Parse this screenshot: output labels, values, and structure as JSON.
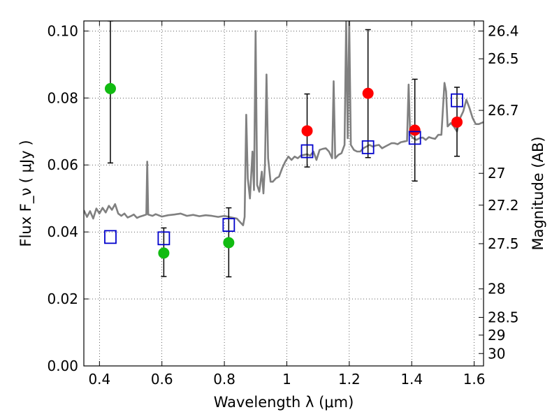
{
  "chart_data": {
    "type": "scatter",
    "xlabel": "Wavelength  λ (μm)",
    "ylabel": "Flux  F_ν  ( μJy )",
    "ylabel_right": "Magnitude (AB)",
    "xlim": [
      0.35,
      1.63
    ],
    "ylim": [
      0.0,
      0.103
    ],
    "grid": true,
    "x_ticks": [
      0.4,
      0.6,
      0.8,
      1.0,
      1.2,
      1.4,
      1.6
    ],
    "x_tick_labels": [
      "0.4",
      "0.6",
      "0.8",
      "1",
      "1.2",
      "1.4",
      "1.6"
    ],
    "y_ticks": [
      0.0,
      0.02,
      0.04,
      0.06,
      0.08,
      0.1
    ],
    "y_tick_labels": [
      "0.00",
      "0.02",
      "0.04",
      "0.06",
      "0.08",
      "0.10"
    ],
    "mag_ticks": [
      {
        "flux": 0.1,
        "label": "26.4"
      },
      {
        "flux": 0.0917,
        "label": "26.5"
      },
      {
        "flux": 0.0763,
        "label": "26.7"
      },
      {
        "flux": 0.0575,
        "label": "27"
      },
      {
        "flux": 0.048,
        "label": "27.2"
      },
      {
        "flux": 0.0365,
        "label": "27.5"
      },
      {
        "flux": 0.023,
        "label": "28"
      },
      {
        "flux": 0.0145,
        "label": "28.5"
      },
      {
        "flux": 0.0092,
        "label": "29"
      },
      {
        "flux": 0.0037,
        "label": "30"
      }
    ],
    "colors": {
      "green": "#11bb11",
      "red": "#ff0000",
      "model_squares": "#0000cc",
      "spectrum": "#808080",
      "error_bars": "#000000"
    },
    "series": [
      {
        "marker": "circle",
        "color": "green",
        "points": [
          {
            "x": 0.435,
            "y": 0.0828,
            "yerr_low": 0.0606,
            "yerr_high": 0.103
          },
          {
            "x": 0.606,
            "y": 0.0337,
            "yerr_low": 0.0267,
            "yerr_high": 0.0412
          },
          {
            "x": 0.814,
            "y": 0.0368,
            "yerr_low": 0.0266,
            "yerr_high": 0.0472
          }
        ]
      },
      {
        "marker": "circle",
        "color": "red",
        "points": [
          {
            "x": 1.065,
            "y": 0.0702,
            "yerr_low": 0.0594,
            "yerr_high": 0.0812
          },
          {
            "x": 1.26,
            "y": 0.0814,
            "yerr_low": 0.0622,
            "yerr_high": 0.1004
          },
          {
            "x": 1.41,
            "y": 0.0704,
            "yerr_low": 0.0552,
            "yerr_high": 0.0856
          },
          {
            "x": 1.545,
            "y": 0.0728,
            "yerr_low": 0.0626,
            "yerr_high": 0.0832
          }
        ]
      },
      {
        "marker": "square",
        "color": "model_squares",
        "points": [
          {
            "x": 0.435,
            "y": 0.0385
          },
          {
            "x": 0.606,
            "y": 0.0381
          },
          {
            "x": 0.814,
            "y": 0.0421
          },
          {
            "x": 1.065,
            "y": 0.0641
          },
          {
            "x": 1.26,
            "y": 0.0653
          },
          {
            "x": 1.41,
            "y": 0.0681
          },
          {
            "x": 1.545,
            "y": 0.0793
          }
        ]
      }
    ],
    "spectrum": [
      [
        0.35,
        0.0465
      ],
      [
        0.36,
        0.0445
      ],
      [
        0.37,
        0.0462
      ],
      [
        0.38,
        0.044
      ],
      [
        0.39,
        0.047
      ],
      [
        0.4,
        0.0455
      ],
      [
        0.41,
        0.0472
      ],
      [
        0.42,
        0.0458
      ],
      [
        0.43,
        0.0478
      ],
      [
        0.44,
        0.0466
      ],
      [
        0.45,
        0.0483
      ],
      [
        0.46,
        0.0455
      ],
      [
        0.47,
        0.0448
      ],
      [
        0.48,
        0.0455
      ],
      [
        0.49,
        0.0443
      ],
      [
        0.5,
        0.0447
      ],
      [
        0.51,
        0.0452
      ],
      [
        0.52,
        0.0442
      ],
      [
        0.53,
        0.0446
      ],
      [
        0.54,
        0.0449
      ],
      [
        0.55,
        0.0452
      ],
      [
        0.553,
        0.061
      ],
      [
        0.556,
        0.0452
      ],
      [
        0.57,
        0.0448
      ],
      [
        0.58,
        0.0453
      ],
      [
        0.6,
        0.0446
      ],
      [
        0.62,
        0.045
      ],
      [
        0.64,
        0.0452
      ],
      [
        0.66,
        0.0455
      ],
      [
        0.68,
        0.0448
      ],
      [
        0.7,
        0.0451
      ],
      [
        0.72,
        0.0447
      ],
      [
        0.74,
        0.045
      ],
      [
        0.76,
        0.0448
      ],
      [
        0.78,
        0.0445
      ],
      [
        0.8,
        0.0448
      ],
      [
        0.82,
        0.0444
      ],
      [
        0.84,
        0.044
      ],
      [
        0.86,
        0.042
      ],
      [
        0.865,
        0.0445
      ],
      [
        0.87,
        0.075
      ],
      [
        0.875,
        0.056
      ],
      [
        0.882,
        0.05
      ],
      [
        0.89,
        0.064
      ],
      [
        0.895,
        0.0525
      ],
      [
        0.9,
        0.1
      ],
      [
        0.905,
        0.054
      ],
      [
        0.912,
        0.052
      ],
      [
        0.92,
        0.058
      ],
      [
        0.925,
        0.0515
      ],
      [
        0.93,
        0.06
      ],
      [
        0.935,
        0.087
      ],
      [
        0.94,
        0.062
      ],
      [
        0.948,
        0.055
      ],
      [
        0.955,
        0.055
      ],
      [
        0.965,
        0.056
      ],
      [
        0.975,
        0.0565
      ],
      [
        0.985,
        0.059
      ],
      [
        0.995,
        0.061
      ],
      [
        1.005,
        0.0625
      ],
      [
        1.015,
        0.0615
      ],
      [
        1.025,
        0.0625
      ],
      [
        1.035,
        0.062
      ],
      [
        1.045,
        0.0628
      ],
      [
        1.055,
        0.063
      ],
      [
        1.065,
        0.0632
      ],
      [
        1.075,
        0.0628
      ],
      [
        1.085,
        0.064
      ],
      [
        1.095,
        0.0615
      ],
      [
        1.105,
        0.0645
      ],
      [
        1.115,
        0.0648
      ],
      [
        1.125,
        0.065
      ],
      [
        1.135,
        0.064
      ],
      [
        1.145,
        0.062
      ],
      [
        1.15,
        0.085
      ],
      [
        1.155,
        0.062
      ],
      [
        1.165,
        0.063
      ],
      [
        1.175,
        0.0635
      ],
      [
        1.185,
        0.066
      ],
      [
        1.19,
        0.103
      ],
      [
        1.195,
        0.068
      ],
      [
        1.2,
        0.103
      ],
      [
        1.205,
        0.066
      ],
      [
        1.215,
        0.0645
      ],
      [
        1.225,
        0.064
      ],
      [
        1.235,
        0.064
      ],
      [
        1.245,
        0.065
      ],
      [
        1.255,
        0.0655
      ],
      [
        1.265,
        0.066
      ],
      [
        1.275,
        0.0655
      ],
      [
        1.285,
        0.0658
      ],
      [
        1.295,
        0.066
      ],
      [
        1.305,
        0.065
      ],
      [
        1.315,
        0.0655
      ],
      [
        1.325,
        0.066
      ],
      [
        1.335,
        0.0665
      ],
      [
        1.345,
        0.0665
      ],
      [
        1.355,
        0.0662
      ],
      [
        1.365,
        0.0668
      ],
      [
        1.375,
        0.067
      ],
      [
        1.385,
        0.0672
      ],
      [
        1.39,
        0.084
      ],
      [
        1.395,
        0.069
      ],
      [
        1.405,
        0.068
      ],
      [
        1.415,
        0.0675
      ],
      [
        1.425,
        0.068
      ],
      [
        1.435,
        0.0682
      ],
      [
        1.445,
        0.0675
      ],
      [
        1.455,
        0.0683
      ],
      [
        1.465,
        0.068
      ],
      [
        1.475,
        0.0678
      ],
      [
        1.485,
        0.069
      ],
      [
        1.495,
        0.069
      ],
      [
        1.505,
        0.0845
      ],
      [
        1.51,
        0.082
      ],
      [
        1.515,
        0.0715
      ],
      [
        1.525,
        0.0725
      ],
      [
        1.535,
        0.0715
      ],
      [
        1.545,
        0.07
      ],
      [
        1.555,
        0.074
      ],
      [
        1.565,
        0.076
      ],
      [
        1.575,
        0.0795
      ],
      [
        1.585,
        0.077
      ],
      [
        1.595,
        0.074
      ],
      [
        1.605,
        0.0722
      ],
      [
        1.615,
        0.0722
      ],
      [
        1.63,
        0.0728
      ]
    ]
  }
}
